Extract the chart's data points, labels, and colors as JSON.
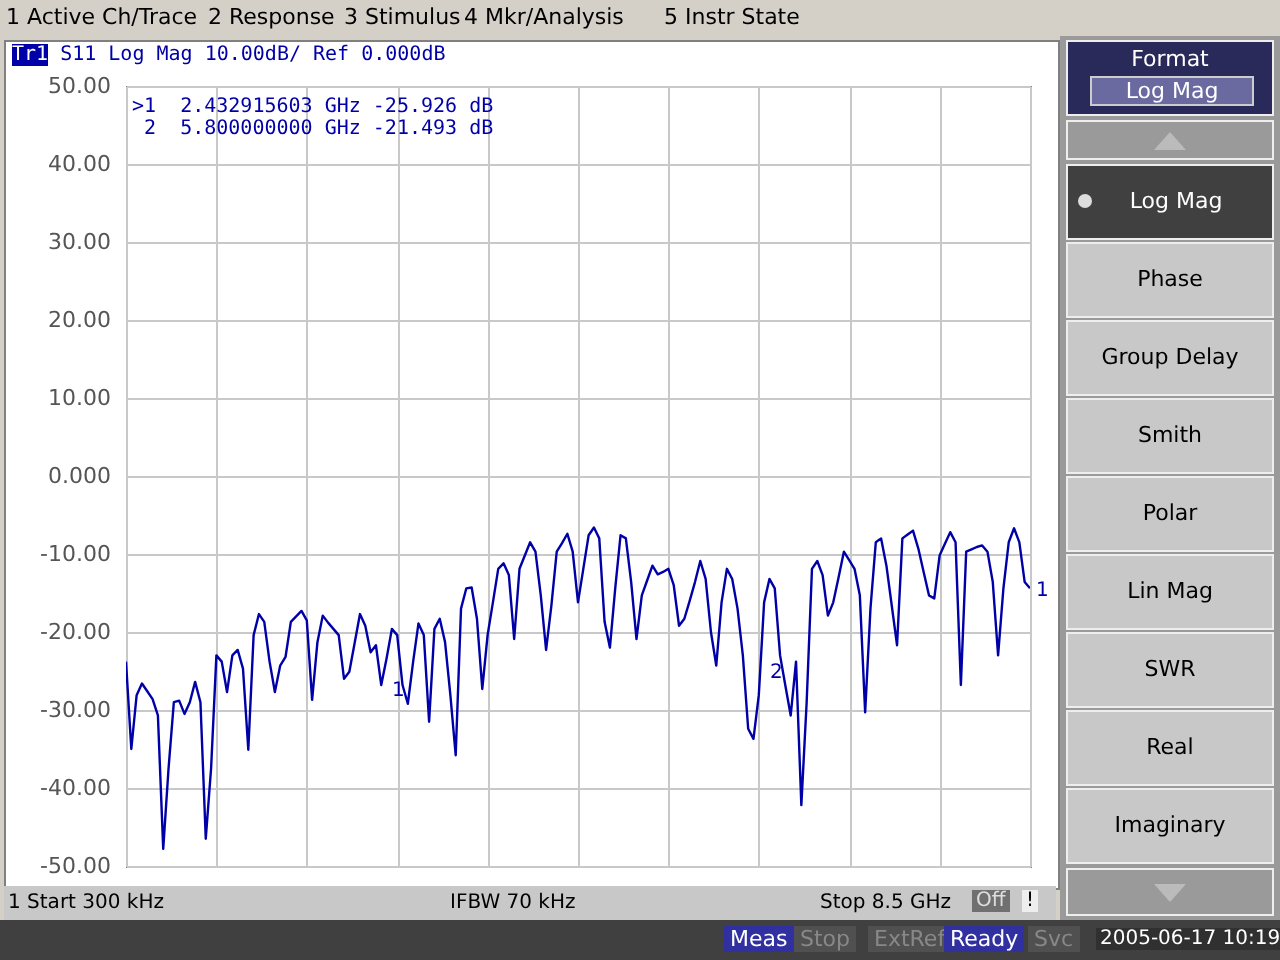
{
  "chart_data": {
    "type": "line",
    "title": "Tr1 S11 Log Mag 10.00dB/ Ref 0.000dB",
    "categories": [
      null,
      null,
      null,
      null,
      null,
      null,
      null,
      null,
      null,
      null,
      null,
      null,
      null,
      null,
      null,
      null,
      null,
      null,
      null,
      null,
      null,
      null,
      null,
      null,
      null,
      null,
      null,
      null,
      null,
      null,
      null,
      null,
      null,
      null,
      null,
      null,
      null,
      null,
      null,
      null,
      null,
      null,
      null,
      null,
      null,
      null,
      null,
      null,
      null,
      null,
      null,
      null,
      null,
      null,
      null,
      null,
      null,
      null,
      null,
      null,
      null,
      null,
      null,
      null,
      null,
      null,
      null,
      null,
      null,
      null,
      null,
      null,
      null,
      null,
      null,
      null,
      null,
      null,
      null,
      null,
      null,
      null,
      null,
      null,
      null,
      null,
      null,
      null,
      null,
      null,
      null,
      null,
      null,
      null,
      null,
      null,
      null,
      null,
      null,
      null,
      null,
      null,
      null,
      null,
      null,
      null,
      null,
      null,
      null,
      null,
      null,
      null,
      null,
      null,
      null,
      null,
      null,
      null,
      null,
      null,
      null,
      null,
      null,
      null,
      null,
      null,
      null,
      null,
      null,
      null,
      null,
      null,
      null,
      null,
      null,
      null,
      null,
      null,
      null,
      null,
      null,
      null,
      null,
      null,
      null,
      null,
      null,
      null,
      null,
      null,
      null,
      null,
      null,
      null,
      null,
      null,
      null,
      null,
      null,
      null,
      null,
      null,
      null,
      null,
      null,
      null,
      null,
      null,
      null,
      null,
      null
    ],
    "series": [
      {
        "color": "#0000a8",
        "values": [
          -23.8,
          -35.0,
          -28.1,
          -26.6,
          -27.6,
          -28.6,
          -30.7,
          -47.8,
          -37.5,
          -29.0,
          -28.8,
          -30.5,
          -29.0,
          -26.4,
          -29.0,
          -46.5,
          -37.5,
          -23.0,
          -23.8,
          -27.7,
          -23.0,
          -22.3,
          -24.7,
          -35.1,
          -20.4,
          -17.7,
          -18.7,
          -23.8,
          -27.7,
          -24.3,
          -23.2,
          -18.7,
          -18.0,
          -17.3,
          -18.5,
          -28.7,
          -21.3,
          -17.9,
          -18.8,
          -19.6,
          -20.4,
          -26.0,
          -25.1,
          -21.4,
          -17.7,
          -19.2,
          -22.6,
          -21.7,
          -26.8,
          -23.4,
          -19.6,
          -20.4,
          -26.8,
          -29.2,
          -23.8,
          -18.9,
          -20.4,
          -31.5,
          -19.6,
          -18.3,
          -21.3,
          -28.1,
          -35.8,
          -17.0,
          -14.4,
          -14.3,
          -18.3,
          -27.3,
          -20.4,
          -16.2,
          -11.9,
          -11.2,
          -12.7,
          -20.9,
          -11.9,
          -10.2,
          -8.5,
          -9.7,
          -15.3,
          -22.3,
          -16.6,
          -9.7,
          -8.6,
          -7.4,
          -9.7,
          -16.2,
          -11.9,
          -7.6,
          -6.6,
          -8.0,
          -18.7,
          -22.0,
          -14.4,
          -7.6,
          -8.0,
          -13.6,
          -20.9,
          -15.3,
          -13.4,
          -11.5,
          -12.6,
          -12.3,
          -11.9,
          -14.0,
          -19.2,
          -18.3,
          -16.0,
          -13.6,
          -10.9,
          -13.2,
          -20.0,
          -24.3,
          -16.2,
          -11.9,
          -13.2,
          -17.0,
          -23.0,
          -32.4,
          -33.7,
          -28.1,
          -16.2,
          -13.2,
          -14.4,
          -23.0,
          -26.9,
          -30.7,
          -23.8,
          -42.2,
          -29.0,
          -11.9,
          -10.9,
          -12.7,
          -17.9,
          -16.2,
          -13.0,
          -9.7,
          -10.8,
          -11.9,
          -15.3,
          -30.3,
          -17.0,
          -8.5,
          -8.0,
          -11.5,
          -16.6,
          -21.7,
          -8.0,
          -7.5,
          -7.0,
          -9.3,
          -12.3,
          -15.3,
          -15.7,
          -10.2,
          -8.7,
          -7.2,
          -8.5,
          -26.8,
          -9.7,
          -9.4,
          -9.1,
          -8.9,
          -9.7,
          -13.6,
          -23.0,
          -14.4,
          -8.5,
          -6.7,
          -8.5,
          -13.6,
          -14.4
        ]
      }
    ],
    "ylim": [
      -50,
      50
    ],
    "yticks": [
      {
        "value": 50,
        "label": "50.00"
      },
      {
        "value": 40,
        "label": "40.00"
      },
      {
        "value": 30,
        "label": "30.00"
      },
      {
        "value": 20,
        "label": "20.00"
      },
      {
        "value": 10,
        "label": "10.00"
      },
      {
        "value": 0,
        "label": "0.000"
      },
      {
        "value": -10,
        "label": "-10.00"
      },
      {
        "value": -20,
        "label": "-20.00"
      },
      {
        "value": -30,
        "label": "-30.00"
      },
      {
        "value": -40,
        "label": "-40.00"
      },
      {
        "value": -50,
        "label": "-50.00"
      }
    ],
    "grid": true,
    "tick_labels": "y",
    "annotations": [
      "1 Active Ch/Trace",
      "2 Response",
      "3 Stimulus",
      "4 Mkr/Analysis",
      "5 Instr State",
      ">1  2.432915603 GHz -25.926 dB",
      " 2  5.800000000 GHz -21.493 dB",
      "1 Start 300 kHz",
      "IFBW 70 kHz",
      "Stop 8.5 GHz",
      "Off",
      "!",
      "Format",
      "Log Mag",
      "Log Mag",
      "Phase",
      "Group Delay",
      "Smith",
      "Polar",
      "Lin Mag",
      "SWR",
      "Real",
      "Imaginary",
      "Meas",
      "Stop",
      "ExtRef",
      "Ready",
      "Svc",
      "2005-06-17 10:19",
      "1",
      "2",
      "1"
    ]
  }
}
